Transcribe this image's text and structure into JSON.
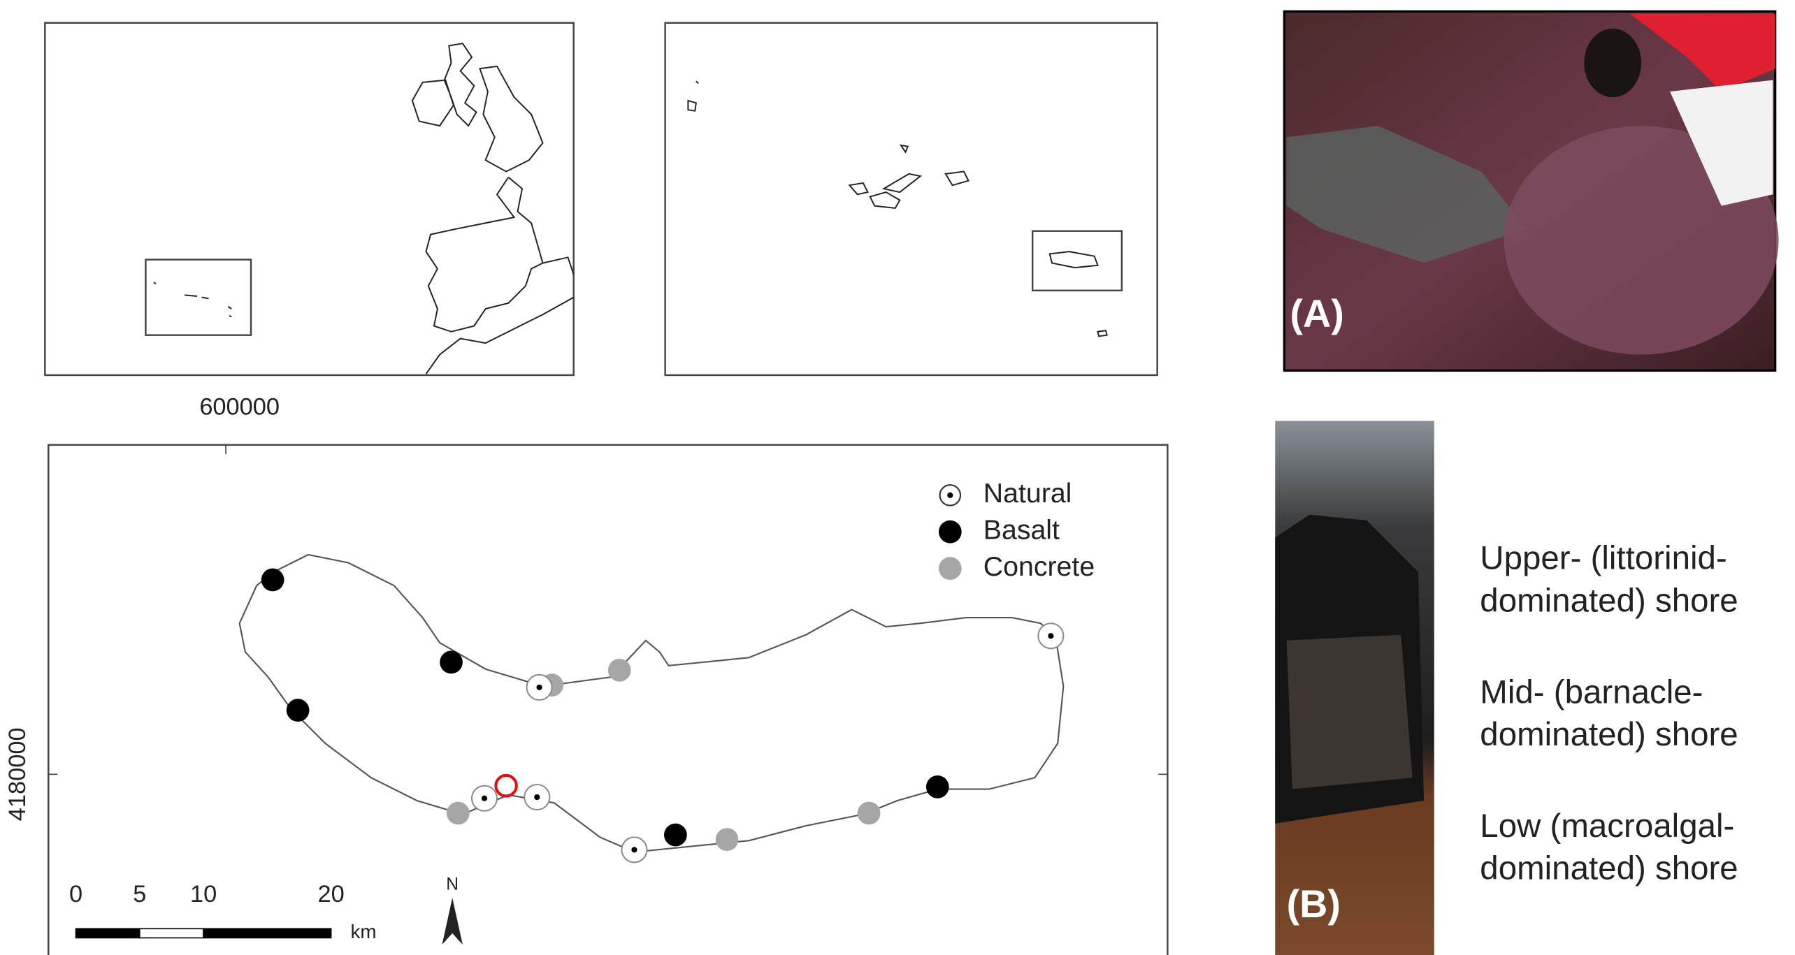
{
  "maps": {
    "x_tick": 600000,
    "y_tick": 4180000,
    "legend": [
      "Natural",
      "Basalt",
      "Concrete"
    ],
    "scale_bar": {
      "ticks": [
        0,
        5,
        10,
        20
      ],
      "unit": "km"
    },
    "north": "N"
  },
  "photos": {
    "a_label": "(A)",
    "b_label": "(B)",
    "zones": [
      [
        "Upper- (littorinid-",
        "dominated) shore"
      ],
      [
        "Mid- (barnacle-",
        "dominated) shore"
      ],
      [
        "Low (macroalgal-",
        "dominated) shore"
      ]
    ]
  }
}
